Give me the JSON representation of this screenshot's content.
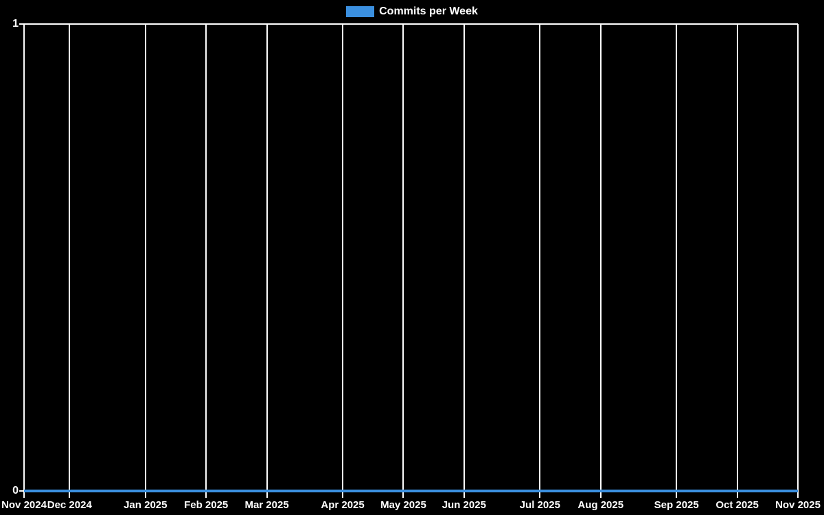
{
  "legend": {
    "label": "Commits per Week"
  },
  "colors": {
    "background": "#000000",
    "grid": "#ffffff",
    "text": "#ffffff",
    "series_blue": "#3b90e0"
  },
  "chart_data": {
    "type": "line",
    "title": "Commits per Week",
    "legend_position": "top-center",
    "grid": "vertical-month-gridlines-on",
    "ylim": [
      0,
      1
    ],
    "y_tick_labels": [
      "1",
      "0"
    ],
    "x_axis": {
      "unit": "week",
      "weeks_total": 51
    },
    "x_ticks": [
      {
        "week": 0,
        "label": "Nov 2024"
      },
      {
        "week": 3,
        "label": "Dec 2024"
      },
      {
        "week": 8,
        "label": "Jan 2025"
      },
      {
        "week": 12,
        "label": "Feb 2025"
      },
      {
        "week": 16,
        "label": "Mar 2025"
      },
      {
        "week": 21,
        "label": "Apr 2025"
      },
      {
        "week": 25,
        "label": "May 2025"
      },
      {
        "week": 29,
        "label": "Jun 2025"
      },
      {
        "week": 34,
        "label": "Jul 2025"
      },
      {
        "week": 38,
        "label": "Aug 2025"
      },
      {
        "week": 43,
        "label": "Sep 2025"
      },
      {
        "week": 47,
        "label": "Oct 2025"
      },
      {
        "week": 51,
        "label": "Nov 2025"
      }
    ],
    "series": [
      {
        "name": "Commits per Week",
        "color": "#3b90e0",
        "values": [
          0,
          0,
          0,
          0,
          0,
          0,
          0,
          0,
          0,
          0,
          0,
          0,
          0,
          0,
          0,
          0,
          0,
          0,
          0,
          0,
          0,
          0,
          0,
          0,
          0,
          0,
          0,
          0,
          0,
          0,
          0,
          0,
          0,
          0,
          0,
          0,
          0,
          0,
          0,
          0,
          0,
          0,
          0,
          0,
          0,
          0,
          0,
          0,
          0,
          0,
          0,
          0
        ]
      }
    ]
  }
}
